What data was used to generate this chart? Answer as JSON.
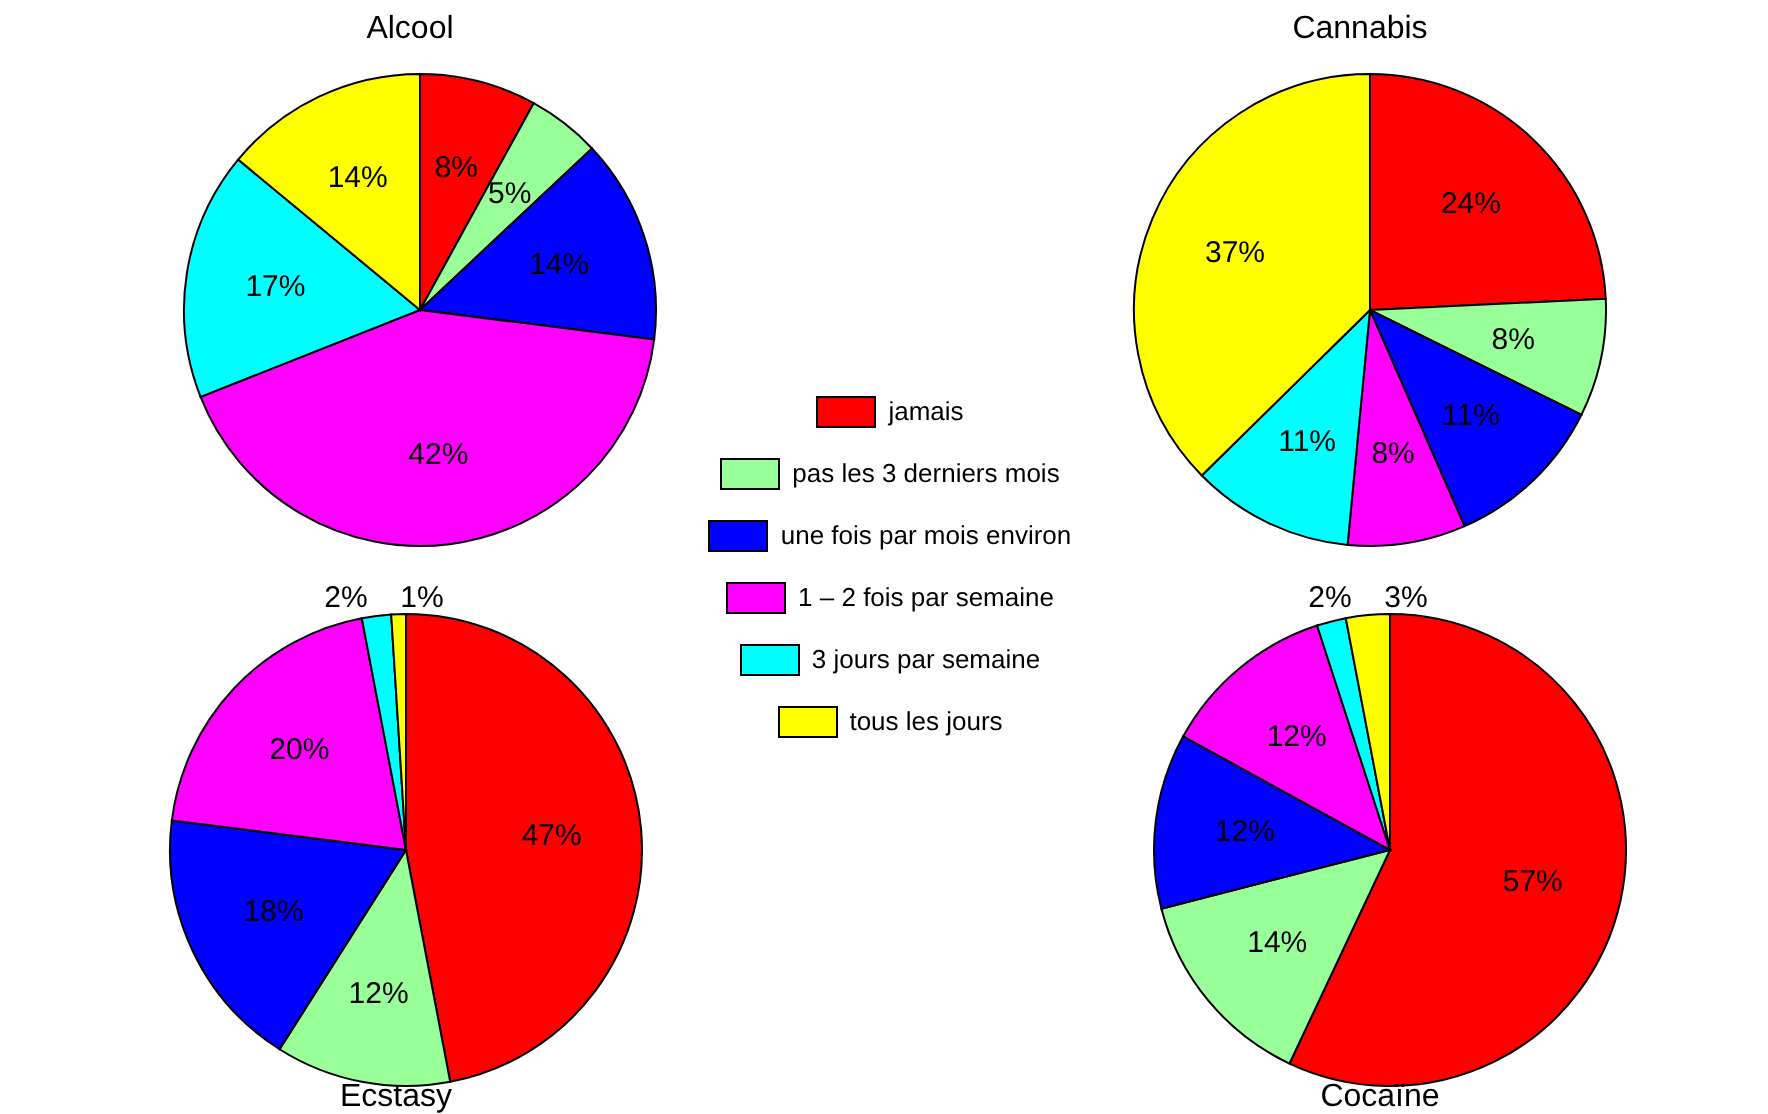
{
  "chart_data": [
    {
      "type": "pie",
      "title": "Alcool",
      "categories": [
        "jamais",
        "pas les 3 derniers mois",
        "une fois par mois environ",
        "1 – 2 fois par semaine",
        "3 jours par semaine",
        "tous les jours"
      ],
      "values": [
        8,
        5,
        14,
        42,
        17,
        14
      ],
      "colors": [
        "#ff0000",
        "#99ff99",
        "#0000ff",
        "#ff00ff",
        "#00ffff",
        "#ffff00"
      ],
      "value_labels": [
        "8%",
        "5%",
        "14%",
        "42%",
        "17%",
        "14%"
      ],
      "legend": "bottom right"
    },
    {
      "type": "pie",
      "title": "Cannabis",
      "categories": [
        null,
        null,
        null,
        null,
        null,
        null
      ],
      "values": [
        24,
        8,
        11,
        8,
        11,
        37
      ],
      "colors": [
        "#ff0000",
        "#99ff99",
        "#0000ff",
        "#ff00ff",
        "#00ffff",
        "#ffff00"
      ],
      "value_labels": [
        "24%",
        "8%",
        "11%",
        "8%",
        "11%",
        "37%"
      ]
    },
    {
      "type": "pie",
      "title": "Ecstasy",
      "categories": [
        null,
        null,
        null,
        null,
        null,
        null
      ],
      "values": [
        47,
        12,
        18,
        20,
        2,
        1
      ],
      "colors": [
        "#ff0000",
        "#99ff99",
        "#0000ff",
        "#ff00ff",
        "#00ffff",
        "#ffff00"
      ],
      "value_labels": [
        "47%",
        "12%",
        "18%",
        "20%",
        "2%",
        "1%"
      ]
    },
    {
      "type": "pie",
      "title": "Cocaïne",
      "categories": [
        null,
        null,
        null,
        null,
        null,
        null
      ],
      "values": [
        57,
        14,
        12,
        12,
        2,
        3
      ],
      "colors": [
        "#ff0000",
        "#99ff99",
        "#0000ff",
        "#ff00ff",
        "#00ffff",
        "#ffff00"
      ],
      "value_labels": [
        "57%",
        "14%",
        "12%",
        "12%",
        "2%",
        "3%"
      ]
    }
  ]
}
